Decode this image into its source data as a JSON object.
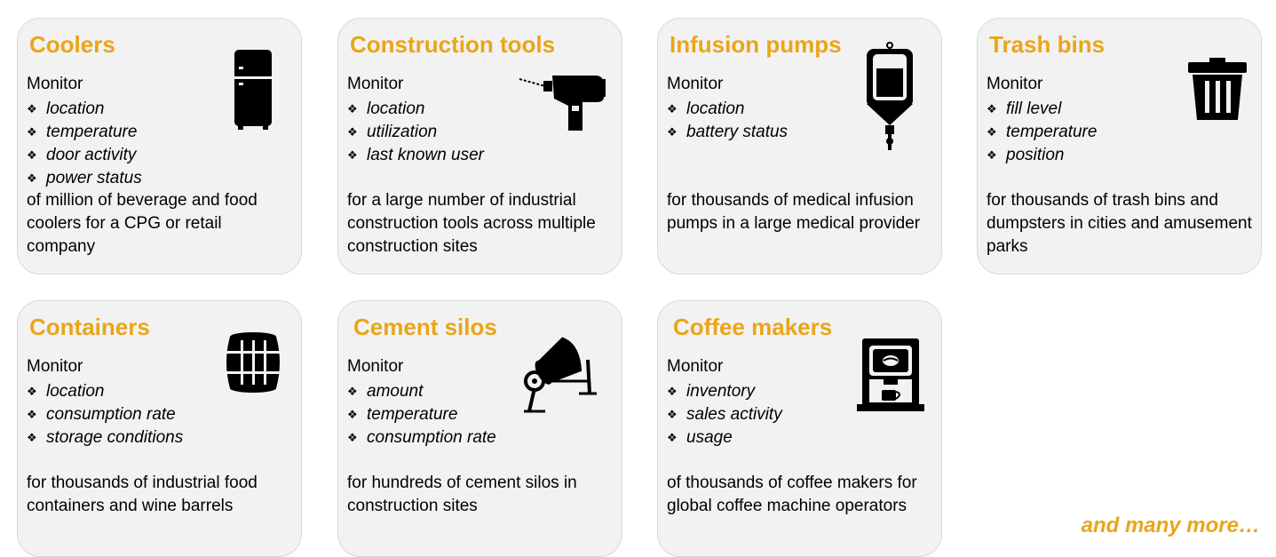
{
  "cards": [
    {
      "title": "Coolers",
      "icon": "refrigerator-icon",
      "monitor": "Monitor",
      "items": [
        "location",
        "temperature",
        "door activity",
        "power status"
      ],
      "desc": "of million of beverage and food coolers for a CPG or retail company"
    },
    {
      "title": "Construction  tools",
      "icon": "drill-icon",
      "monitor": "Monitor",
      "items": [
        "location",
        "utilization",
        "last known user"
      ],
      "desc": "for a large number of industrial construction tools across multiple construction sites"
    },
    {
      "title": "Infusion pumps",
      "icon": "iv-bag-icon",
      "monitor": "Monitor",
      "items": [
        "location",
        "battery status"
      ],
      "desc": "for thousands of medical infusion pumps in a large medical provider"
    },
    {
      "title": "Trash bins",
      "icon": "trash-bin-icon",
      "monitor": "Monitor",
      "items": [
        "fill level",
        "temperature",
        "position"
      ],
      "desc": "for thousands of trash bins and dumpsters in cities and amusement parks"
    },
    {
      "title": "Containers",
      "icon": "barrel-icon",
      "monitor": "Monitor",
      "items": [
        "location",
        "consumption rate",
        "storage conditions"
      ],
      "desc": "for thousands of industrial food containers and wine barrels"
    },
    {
      "title": "Cement silos",
      "icon": "cement-mixer-icon",
      "monitor": "Monitor",
      "items": [
        "amount",
        "temperature",
        "consumption rate"
      ],
      "desc": "for hundreds of cement silos in construction sites"
    },
    {
      "title": "Coffee makers",
      "icon": "coffee-machine-icon",
      "monitor": "Monitor",
      "items": [
        "inventory",
        "sales activity",
        "usage"
      ],
      "desc": "of thousands of coffee makers for global coffee machine operators"
    }
  ],
  "more": "and many more…",
  "colors": {
    "accent": "#eaa519",
    "card_bg": "#f2f2f2",
    "card_border": "#d9d9d9"
  }
}
